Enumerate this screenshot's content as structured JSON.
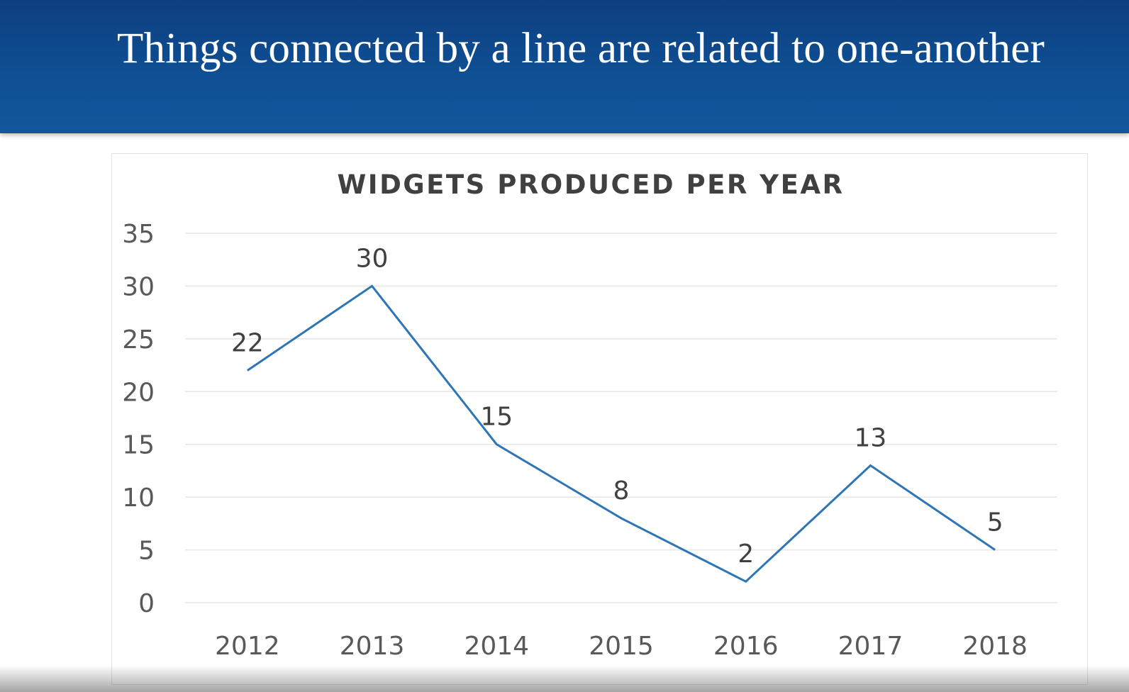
{
  "slide": {
    "title": "Things connected by a line are related to one-another"
  },
  "colors": {
    "header_bg": "#0f4f93",
    "header_text": "#ffffff",
    "line": "#2e75b6",
    "gridline": "#e6e6e6",
    "axis_text": "#595959"
  },
  "chart_data": {
    "type": "line",
    "title": "WIDGETS PRODUCED PER YEAR",
    "xlabel": "",
    "ylabel": "",
    "categories": [
      "2012",
      "2013",
      "2014",
      "2015",
      "2016",
      "2017",
      "2018"
    ],
    "values": [
      22,
      30,
      15,
      8,
      2,
      13,
      5
    ],
    "data_labels": [
      "22",
      "30",
      "15",
      "8",
      "2",
      "13",
      "5"
    ],
    "ylim": [
      0,
      35
    ],
    "yticks": [
      0,
      5,
      10,
      15,
      20,
      25,
      30,
      35
    ],
    "ytick_labels": [
      "0",
      "5",
      "10",
      "15",
      "20",
      "25",
      "30",
      "35"
    ],
    "grid": true,
    "legend": "none"
  }
}
